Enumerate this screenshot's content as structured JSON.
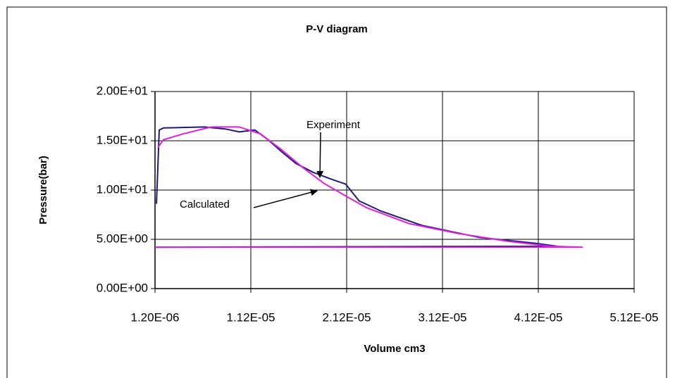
{
  "chart_data": {
    "type": "line",
    "title": "P-V diagram",
    "xlabel": "Volume cm3",
    "ylabel": "Pressure(bar)",
    "annotations": [
      "Experiment",
      "Calculated"
    ],
    "xlim": [
      1.2e-06,
      5.12e-05
    ],
    "xticks": [
      {
        "value": 1.2e-06,
        "label": "1.20E-06"
      },
      {
        "value": 1.12e-05,
        "label": "1.12E-05"
      },
      {
        "value": 2.12e-05,
        "label": "2.12E-05"
      },
      {
        "value": 3.12e-05,
        "label": "3.12E-05"
      },
      {
        "value": 4.12e-05,
        "label": "4.12E-05"
      },
      {
        "value": 5.12e-05,
        "label": "5.12E-05"
      }
    ],
    "ylim": [
      0,
      20
    ],
    "yticks": [
      {
        "value": 0,
        "label": "0.00E+00"
      },
      {
        "value": 5,
        "label": "5.00E+00"
      },
      {
        "value": 10,
        "label": "1.00E+01"
      },
      {
        "value": 15,
        "label": "1.50E+01"
      },
      {
        "value": 20,
        "label": "2.00E+01"
      }
    ],
    "grid": true,
    "series": [
      {
        "name": "Experiment",
        "color": "#1c1c78",
        "x": [
          1.35e-06,
          1.49e-06,
          1.64e-06,
          2.08e-06,
          6.35e-06,
          8.55e-06,
          1e-05,
          1.16e-05,
          1.3e-05,
          1.44e-05,
          1.59e-05,
          1.77e-05,
          1.96e-05,
          2.11e-05,
          2.25e-05,
          2.47e-05,
          2.91e-05,
          3.5e-05,
          4.09e-05,
          4.31e-05,
          1.2e-06
        ],
        "values": [
          8.6,
          12.1,
          16.1,
          16.3,
          16.4,
          16.2,
          15.9,
          16.1,
          15.1,
          13.9,
          12.7,
          11.8,
          11.1,
          10.6,
          8.9,
          7.9,
          6.4,
          5.2,
          4.6,
          4.3,
          4.2
        ]
      },
      {
        "name": "Calculated",
        "color": "#e020e0",
        "x": [
          1.49e-06,
          2.08e-06,
          4.14e-06,
          7.08e-06,
          1e-05,
          1.22e-05,
          1.44e-05,
          1.66e-05,
          1.88e-05,
          2.11e-05,
          2.33e-05,
          2.77e-05,
          3.28e-05,
          3.8e-05,
          4.24e-05,
          4.58e-05,
          1.2e-06
        ],
        "values": [
          14.3,
          15.1,
          15.7,
          16.4,
          16.4,
          15.7,
          14.1,
          12.3,
          10.7,
          9.4,
          8.2,
          6.6,
          5.6,
          4.8,
          4.3,
          4.2,
          4.2
        ]
      }
    ]
  }
}
